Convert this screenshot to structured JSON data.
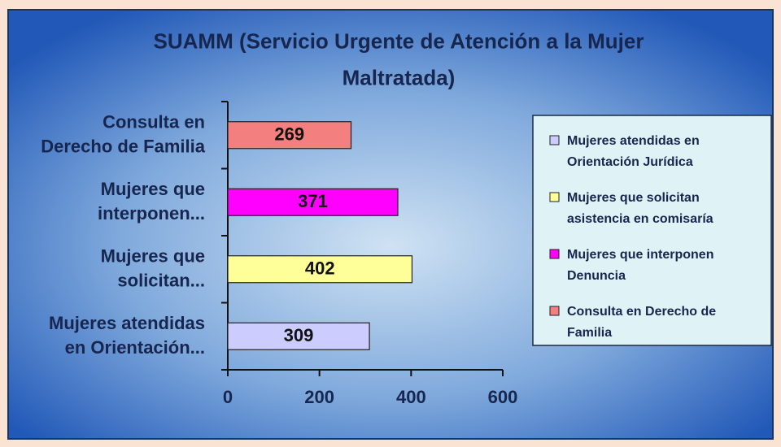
{
  "chart_data": {
    "type": "barh",
    "title": "SUAMM (Servicio Urgente de Atención a la Mujer\nMaltratada)",
    "categories": [
      "Mujeres atendidas\nen Orientación...",
      "Mujeres que\nsolicitan...",
      "Mujeres que\ninterponen...",
      "Consulta en\nDerecho de Familia"
    ],
    "values": [
      309,
      402,
      371,
      269
    ],
    "colors": [
      "#ccccff",
      "#ffff99",
      "#ff00ff",
      "#f47f7f"
    ],
    "legend": [
      "Mujeres atendidas en\nOrientación Jurídica",
      "Mujeres que solicitan\nasistencia en comisaría",
      "Mujeres que interponen\nDenuncia",
      "Consulta en Derecho de\nFamilia"
    ],
    "legend_position": "right",
    "xlim": [
      0,
      600
    ],
    "xticks": [
      0,
      200,
      400,
      600
    ]
  }
}
